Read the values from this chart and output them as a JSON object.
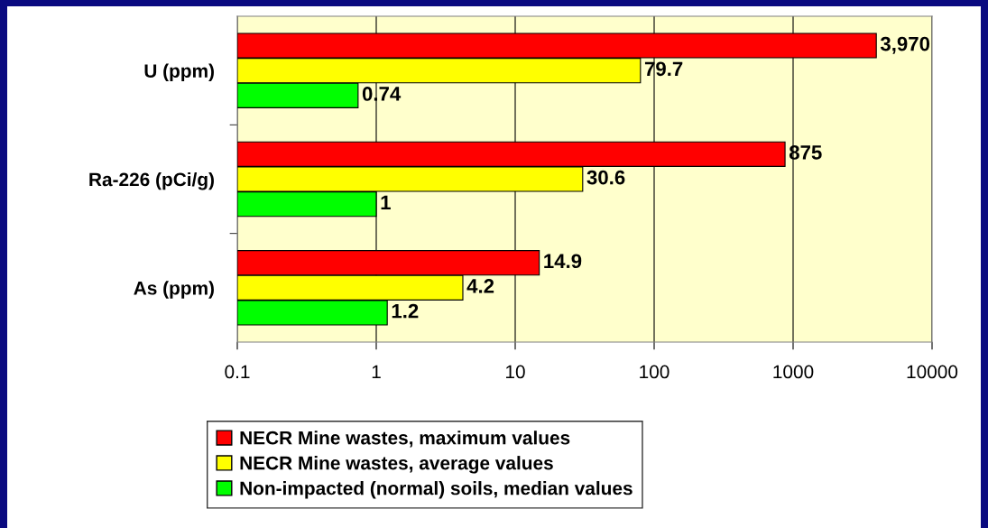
{
  "chart_data": {
    "type": "bar",
    "orientation": "horizontal",
    "log": "x",
    "categories": [
      "U (ppm)",
      "Ra-226 (pCi/g)",
      "As (ppm)"
    ],
    "series": [
      {
        "name": "NECR Mine wastes, maximum values",
        "color": "#ff0000",
        "values": [
          3970,
          875,
          14.9
        ],
        "value_labels": [
          "3,970",
          "875",
          "14.9"
        ]
      },
      {
        "name": "NECR Mine wastes, average values",
        "color": "#ffff00",
        "values": [
          79.7,
          30.6,
          4.2
        ],
        "value_labels": [
          "79.7",
          "30.6",
          "4.2"
        ]
      },
      {
        "name": "Non-impacted (normal) soils, median values",
        "color": "#00ff00",
        "values": [
          0.74,
          1,
          1.2
        ],
        "value_labels": [
          "0.74",
          "1",
          "1.2"
        ]
      }
    ],
    "xlim": [
      0.1,
      10000
    ],
    "xticks": [
      0.1,
      1,
      10,
      100,
      1000,
      10000
    ],
    "grid": "x",
    "legend": "bottom"
  }
}
